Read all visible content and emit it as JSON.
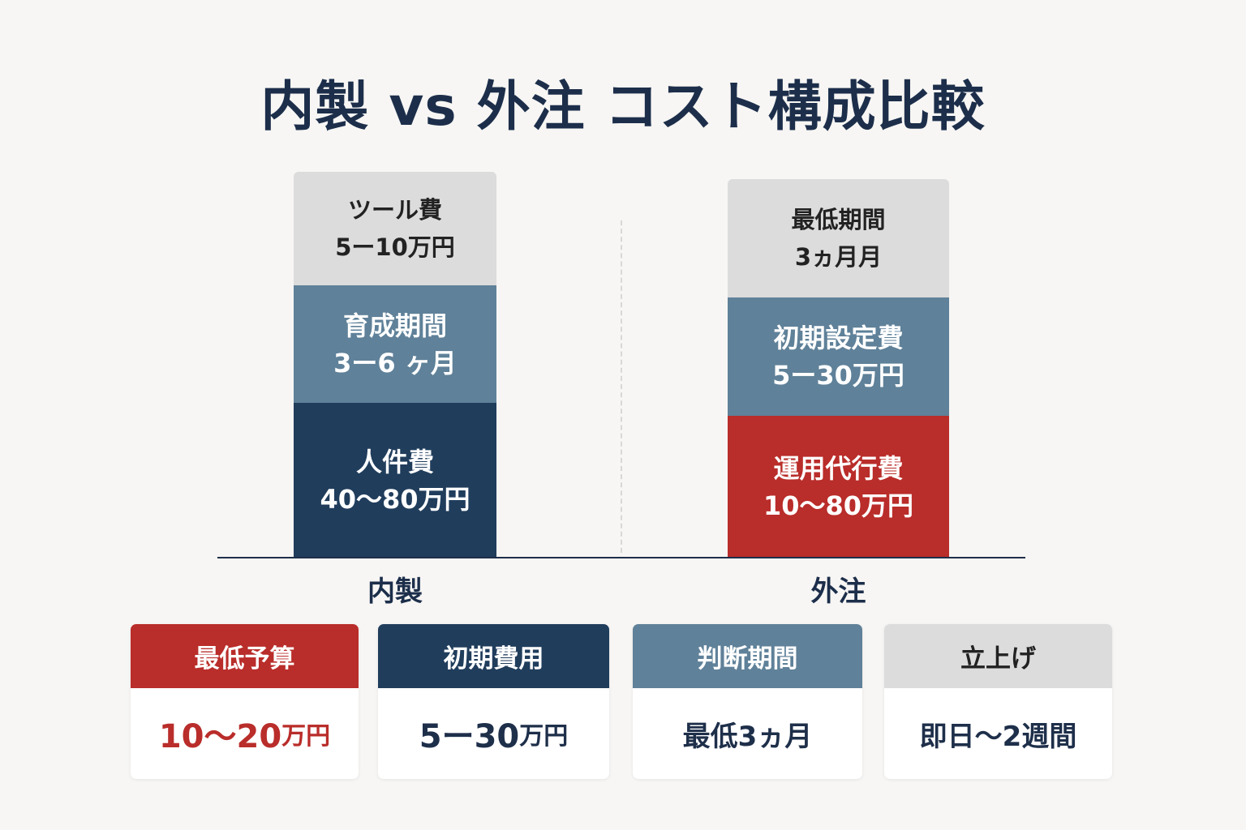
{
  "title": "内製 vs 外注 コスト構成比較",
  "colors": {
    "navy": "#203d5c",
    "steel": "#5f8199",
    "light_gray": "#dcdcdc",
    "red": "#b92d2a",
    "background": "#f7f6f4"
  },
  "chart_data": {
    "type": "bar",
    "stacked": true,
    "title": "内製 vs 外注 コスト構成比較",
    "categories": [
      "内製",
      "外注"
    ],
    "bars": [
      {
        "category": "内製",
        "segments": [
          {
            "name": "人件費",
            "label": "40〜80万円",
            "color": "#203d5c"
          },
          {
            "name": "育成期間",
            "label": "3ー6 ヶ月",
            "color": "#5f8199"
          },
          {
            "name": "ツール費",
            "label": "5ー10万円",
            "color": "#dcdcdc"
          }
        ]
      },
      {
        "category": "外注",
        "segments": [
          {
            "name": "運用代行費",
            "label": "10〜80万円",
            "color": "#b92d2a"
          },
          {
            "name": "初期設定費",
            "label": "5ー30万円",
            "color": "#5f8199"
          },
          {
            "name": "最低期間",
            "label": "3ヵ月月",
            "color": "#dcdcdc"
          }
        ]
      }
    ],
    "legend": "none",
    "grid": false
  },
  "summary_cards": [
    {
      "label": "最低予算",
      "value": "10〜20",
      "unit": "万円",
      "header_color": "#b92d2a",
      "header_text_color": "#ffffff",
      "value_color": "#b92d2a"
    },
    {
      "label": "初期費用",
      "value": "5ー30",
      "unit": "万円",
      "header_color": "#203d5c",
      "header_text_color": "#ffffff",
      "value_color": "#1e2f4a"
    },
    {
      "label": "判断期間",
      "value": "最低3ヵ月",
      "unit": "",
      "header_color": "#5f8199",
      "header_text_color": "#ffffff",
      "value_color": "#1e2f4a"
    },
    {
      "label": "立上げ",
      "value": "即日〜2週間",
      "unit": "",
      "header_color": "#dcdcdc",
      "header_text_color": "#222222",
      "value_color": "#1e2f4a"
    }
  ]
}
